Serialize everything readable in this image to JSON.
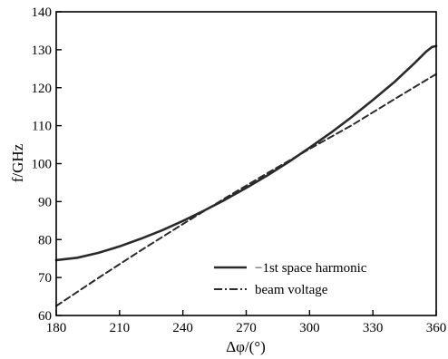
{
  "chart_data": {
    "type": "line",
    "xlabel": "Δφ/(°)",
    "ylabel": "f/GHz",
    "xlim": [
      180,
      360
    ],
    "ylim": [
      60,
      140
    ],
    "xticks": [
      180,
      210,
      240,
      270,
      300,
      330,
      360
    ],
    "yticks": [
      60,
      70,
      80,
      90,
      100,
      110,
      120,
      130,
      140
    ],
    "grid": false,
    "legend_position": "bottom-right",
    "series": [
      {
        "name": "−1st space harmonic",
        "style": "solid",
        "x": [
          180,
          190,
          200,
          210,
          220,
          230,
          240,
          250,
          260,
          270,
          280,
          290,
          300,
          310,
          320,
          330,
          340,
          350,
          355,
          358,
          360
        ],
        "y": [
          74.6,
          75.2,
          76.5,
          78.2,
          80.2,
          82.4,
          84.9,
          87.6,
          90.5,
          93.6,
          96.9,
          100.4,
          104.2,
          108.1,
          112.3,
          116.8,
          121.4,
          126.6,
          129.4,
          130.7,
          131.0
        ]
      },
      {
        "name": "beam voltage",
        "style": "dashed",
        "x": [
          180,
          200,
          220,
          240,
          260,
          280,
          300,
          320,
          340,
          360
        ],
        "y": [
          62.5,
          69.9,
          77.1,
          84.1,
          90.9,
          97.5,
          103.9,
          110.1,
          116.9,
          123.6
        ]
      }
    ]
  }
}
